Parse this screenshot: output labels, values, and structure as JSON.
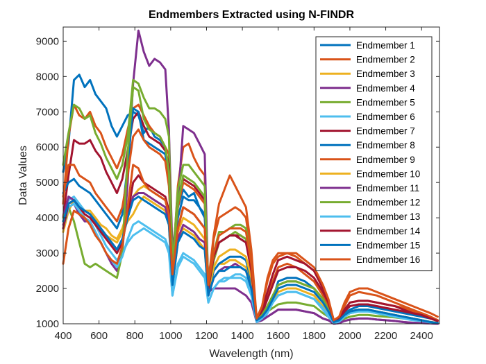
{
  "chart_data": {
    "type": "line",
    "title": "Endmembers Extracted using N-FINDR",
    "xlabel": "Wavelength (nm)",
    "ylabel": "Data Values",
    "xlim": [
      400,
      2500
    ],
    "ylim": [
      1000,
      9400
    ],
    "xticks": [
      400,
      600,
      800,
      1000,
      1200,
      1400,
      1600,
      1800,
      2000,
      2200,
      2400
    ],
    "yticks": [
      1000,
      2000,
      3000,
      4000,
      5000,
      6000,
      7000,
      8000,
      9000
    ],
    "grid": false,
    "legend_position": "top-right",
    "x": [
      400,
      430,
      460,
      490,
      520,
      550,
      580,
      610,
      640,
      670,
      700,
      730,
      760,
      790,
      820,
      850,
      880,
      910,
      940,
      970,
      990,
      1010,
      1040,
      1070,
      1100,
      1130,
      1160,
      1190,
      1210,
      1240,
      1270,
      1300,
      1330,
      1360,
      1390,
      1420,
      1450,
      1480,
      1510,
      1540,
      1570,
      1600,
      1650,
      1700,
      1750,
      1800,
      1850,
      1880,
      1910,
      1940,
      1970,
      2000,
      2050,
      2100,
      2150,
      2200,
      2250,
      2300,
      2350,
      2400,
      2450,
      2490
    ],
    "series": [
      {
        "name": "Endmember  1",
        "color": "#0072BD",
        "values": [
          5300,
          6100,
          7900,
          8050,
          7700,
          7900,
          7500,
          7300,
          7100,
          6600,
          6300,
          6600,
          6900,
          7000,
          6900,
          6400,
          6600,
          6300,
          6200,
          6000,
          5200,
          2800,
          4300,
          4800,
          4600,
          4700,
          4300,
          4000,
          2300,
          3100,
          3300,
          3400,
          3500,
          3500,
          3400,
          3300,
          2600,
          1200,
          1300,
          1500,
          1700,
          2200,
          2300,
          2300,
          2200,
          2000,
          1700,
          1500,
          1100,
          1150,
          1300,
          1400,
          1500,
          1500,
          1450,
          1400,
          1350,
          1300,
          1250,
          1200,
          1150,
          1100
        ]
      },
      {
        "name": "Endmember  2",
        "color": "#D95319",
        "values": [
          4400,
          6300,
          7200,
          6900,
          6800,
          7000,
          6600,
          6400,
          6000,
          5700,
          5400,
          5800,
          6500,
          7100,
          7200,
          6900,
          6600,
          6400,
          6300,
          6000,
          5800,
          2500,
          4900,
          6000,
          6100,
          5700,
          5400,
          5200,
          2000,
          3400,
          4000,
          4100,
          4200,
          4300,
          4200,
          4000,
          2900,
          1100,
          1300,
          1800,
          2200,
          2600,
          2700,
          2600,
          2400,
          2200,
          1800,
          1500,
          1100,
          1150,
          1400,
          1600,
          1650,
          1650,
          1600,
          1550,
          1500,
          1450,
          1350,
          1300,
          1200,
          1100
        ]
      },
      {
        "name": "Endmember  3",
        "color": "#EDB120",
        "values": [
          3600,
          4200,
          4500,
          4300,
          4200,
          4100,
          3900,
          3600,
          3500,
          3400,
          3300,
          3600,
          3900,
          4100,
          4400,
          4600,
          4500,
          4400,
          4300,
          4200,
          3800,
          2100,
          3300,
          3700,
          3600,
          3500,
          3300,
          3100,
          1800,
          2500,
          2700,
          2700,
          2800,
          2800,
          2700,
          2600,
          2100,
          1100,
          1200,
          1400,
          1600,
          1900,
          2000,
          2000,
          1900,
          1800,
          1500,
          1300,
          1050,
          1100,
          1250,
          1350,
          1400,
          1400,
          1350,
          1300,
          1250,
          1200,
          1150,
          1100,
          1050,
          1020
        ]
      },
      {
        "name": "Endmember  4",
        "color": "#7E2F8E",
        "values": [
          3800,
          4300,
          4400,
          4100,
          3900,
          3900,
          3600,
          3300,
          3000,
          2700,
          2500,
          3000,
          5000,
          7800,
          9300,
          8700,
          8300,
          8500,
          8400,
          8200,
          6500,
          3000,
          4400,
          6600,
          6500,
          6400,
          6100,
          5800,
          1900,
          2000,
          2000,
          2000,
          2000,
          2000,
          1900,
          1800,
          1600,
          1050,
          1100,
          1200,
          1300,
          1400,
          1400,
          1400,
          1350,
          1300,
          1150,
          1100,
          1000,
          1020,
          1080,
          1120,
          1150,
          1150,
          1120,
          1100,
          1080,
          1050,
          1030,
          1020,
          1010,
          1000
        ]
      },
      {
        "name": "Endmember  5",
        "color": "#77AC30",
        "values": [
          5500,
          6400,
          7200,
          7100,
          6800,
          6900,
          6400,
          6100,
          5700,
          5400,
          5100,
          5500,
          6300,
          7900,
          7800,
          7400,
          7100,
          7100,
          7000,
          6800,
          6300,
          2600,
          4800,
          5500,
          5500,
          5300,
          5100,
          4900,
          2000,
          3000,
          3600,
          3600,
          3700,
          3800,
          3800,
          3700,
          2700,
          1100,
          1200,
          1350,
          1450,
          1550,
          1600,
          1600,
          1550,
          1500,
          1300,
          1200,
          1000,
          1050,
          1150,
          1200,
          1250,
          1250,
          1220,
          1200,
          1180,
          1150,
          1120,
          1100,
          1050,
          1030
        ]
      },
      {
        "name": "Endmember  6",
        "color": "#4DBEEE",
        "values": [
          3900,
          4500,
          4600,
          4400,
          4200,
          4100,
          3800,
          3500,
          3200,
          3000,
          2800,
          3000,
          3300,
          3500,
          3600,
          3700,
          3600,
          3500,
          3400,
          3300,
          3000,
          1800,
          2600,
          2900,
          2800,
          2700,
          2500,
          2300,
          1600,
          2000,
          2200,
          2300,
          2300,
          2400,
          2400,
          2300,
          1900,
          1050,
          1100,
          1300,
          1600,
          1800,
          1900,
          1900,
          1800,
          1700,
          1400,
          1200,
          1020,
          1050,
          1200,
          1300,
          1350,
          1350,
          1300,
          1250,
          1220,
          1180,
          1130,
          1080,
          1050,
          1020
        ]
      },
      {
        "name": "Endmember  7",
        "color": "#A2142F",
        "values": [
          4000,
          5200,
          6200,
          6100,
          6100,
          6200,
          5900,
          5700,
          5300,
          5000,
          4700,
          5100,
          5900,
          6800,
          7000,
          6600,
          6300,
          6200,
          6100,
          5900,
          5500,
          2500,
          4400,
          5100,
          5000,
          4900,
          4700,
          4500,
          2000,
          2800,
          3300,
          3400,
          3500,
          3500,
          3500,
          3400,
          2600,
          1100,
          1300,
          1700,
          2100,
          2500,
          2600,
          2600,
          2500,
          2300,
          1900,
          1600,
          1100,
          1150,
          1350,
          1500,
          1550,
          1550,
          1500,
          1450,
          1400,
          1350,
          1300,
          1250,
          1150,
          1080
        ]
      },
      {
        "name": "Endmember  8",
        "color": "#0072BD",
        "values": [
          4700,
          5000,
          5100,
          4900,
          4800,
          4700,
          4500,
          4300,
          4100,
          3900,
          3700,
          4100,
          5500,
          7100,
          7000,
          6200,
          6100,
          6000,
          5900,
          5800,
          5000,
          2600,
          4000,
          4600,
          4500,
          4500,
          4300,
          4100,
          1900,
          2500,
          2700,
          2800,
          2900,
          2900,
          2900,
          2800,
          2200,
          1100,
          1200,
          1500,
          1800,
          2100,
          2200,
          2200,
          2100,
          2000,
          1700,
          1400,
          1050,
          1100,
          1250,
          1350,
          1400,
          1400,
          1350,
          1300,
          1250,
          1200,
          1150,
          1100,
          1050,
          1020
        ]
      },
      {
        "name": "Endmember  9",
        "color": "#D95319",
        "values": [
          4600,
          5500,
          5500,
          5200,
          5100,
          5000,
          4700,
          4500,
          4300,
          4100,
          3900,
          4300,
          5200,
          6300,
          6500,
          6200,
          6000,
          5900,
          5800,
          5600,
          4900,
          2700,
          4300,
          5000,
          4900,
          4800,
          4600,
          4400,
          2200,
          3500,
          4400,
          4800,
          5200,
          4900,
          4600,
          4300,
          3100,
          1150,
          1500,
          2200,
          2700,
          2900,
          3000,
          2900,
          2700,
          2500,
          2000,
          1600,
          1100,
          1200,
          1500,
          1800,
          1900,
          1850,
          1800,
          1700,
          1600,
          1500,
          1400,
          1300,
          1200,
          1100
        ]
      },
      {
        "name": "Endmember 10",
        "color": "#EDB120",
        "values": [
          3900,
          4400,
          4500,
          4300,
          4200,
          4200,
          4000,
          3800,
          3700,
          3500,
          3400,
          3700,
          4200,
          4600,
          4800,
          4900,
          4800,
          4700,
          4600,
          4500,
          4100,
          2200,
          3600,
          4000,
          3900,
          3800,
          3600,
          3400,
          1900,
          2600,
          2900,
          3000,
          3100,
          3100,
          3000,
          2900,
          2300,
          1100,
          1250,
          1500,
          1800,
          2100,
          2200,
          2200,
          2100,
          2000,
          1700,
          1400,
          1050,
          1100,
          1250,
          1350,
          1400,
          1400,
          1350,
          1300,
          1250,
          1200,
          1150,
          1100,
          1050,
          1020
        ]
      },
      {
        "name": "Endmember 11",
        "color": "#7E2F8E",
        "values": [
          4000,
          4600,
          4500,
          4300,
          4200,
          4100,
          3900,
          3700,
          3500,
          3300,
          3100,
          3400,
          4000,
          4600,
          4700,
          4700,
          4600,
          4500,
          4400,
          4300,
          3900,
          2100,
          3400,
          3800,
          3700,
          3600,
          3400,
          3300,
          1800,
          2300,
          2500,
          2600,
          2600,
          2700,
          2600,
          2500,
          2000,
          1050,
          1100,
          1200,
          1300,
          1400,
          1400,
          1400,
          1350,
          1300,
          1150,
          1100,
          1000,
          1020,
          1080,
          1120,
          1150,
          1150,
          1120,
          1100,
          1080,
          1050,
          1030,
          1020,
          1010,
          1000
        ]
      },
      {
        "name": "Endmember 12",
        "color": "#77AC30",
        "values": [
          4000,
          4300,
          3900,
          3300,
          2700,
          2600,
          2700,
          2600,
          2500,
          2400,
          2300,
          3000,
          5800,
          7700,
          7600,
          6800,
          6500,
          6400,
          6300,
          6000,
          5300,
          2700,
          4400,
          5200,
          5100,
          5000,
          4800,
          4600,
          2000,
          2800,
          3300,
          3400,
          3500,
          3600,
          3500,
          3400,
          2600,
          1100,
          1250,
          1500,
          1800,
          2100,
          2200,
          2200,
          2100,
          2000,
          1700,
          1400,
          1050,
          1100,
          1250,
          1350,
          1400,
          1400,
          1350,
          1300,
          1250,
          1200,
          1150,
          1100,
          1050,
          1020
        ]
      },
      {
        "name": "Endmember 13",
        "color": "#4DBEEE",
        "values": [
          3700,
          4300,
          4400,
          4200,
          4000,
          3900,
          3600,
          3300,
          3000,
          2800,
          2600,
          2900,
          3400,
          3800,
          3900,
          3800,
          3700,
          3600,
          3500,
          3400,
          3100,
          1800,
          2700,
          3000,
          2900,
          2800,
          2600,
          2400,
          1600,
          2000,
          2200,
          2200,
          2300,
          2300,
          2300,
          2200,
          1800,
          1050,
          1150,
          1350,
          1600,
          1800,
          1900,
          1900,
          1800,
          1700,
          1450,
          1250,
          1020,
          1060,
          1200,
          1300,
          1350,
          1350,
          1300,
          1250,
          1200,
          1150,
          1100,
          1080,
          1040,
          1020
        ]
      },
      {
        "name": "Endmember 14",
        "color": "#A2142F",
        "values": [
          3700,
          4400,
          4500,
          4300,
          4100,
          4000,
          3800,
          3600,
          3400,
          3200,
          3000,
          3300,
          4100,
          5000,
          5200,
          5000,
          4900,
          4800,
          4700,
          4600,
          4200,
          2300,
          3700,
          4300,
          4200,
          4100,
          3900,
          3700,
          2000,
          2900,
          3300,
          3400,
          3500,
          3500,
          3400,
          3300,
          2500,
          1150,
          1400,
          1900,
          2400,
          2800,
          2900,
          2800,
          2700,
          2500,
          2000,
          1600,
          1100,
          1150,
          1400,
          1600,
          1650,
          1650,
          1600,
          1550,
          1500,
          1400,
          1300,
          1250,
          1150,
          1080
        ]
      },
      {
        "name": "Endmember 15",
        "color": "#0072BD",
        "values": [
          3900,
          4400,
          4500,
          4300,
          4200,
          4100,
          3900,
          3700,
          3500,
          3300,
          3100,
          3400,
          4000,
          4500,
          4600,
          4500,
          4400,
          4300,
          4200,
          4100,
          3800,
          2100,
          3300,
          3600,
          3500,
          3400,
          3200,
          3100,
          1800,
          2300,
          2500,
          2500,
          2600,
          2600,
          2600,
          2500,
          2000,
          1100,
          1200,
          1400,
          1700,
          2000,
          2100,
          2100,
          2000,
          1900,
          1600,
          1350,
          1050,
          1100,
          1250,
          1350,
          1400,
          1400,
          1350,
          1300,
          1250,
          1200,
          1150,
          1100,
          1050,
          1020
        ]
      },
      {
        "name": "Endmember 16",
        "color": "#D95319",
        "values": [
          2700,
          3700,
          4200,
          4100,
          4000,
          3800,
          3500,
          3300,
          3000,
          2800,
          2700,
          3200,
          4300,
          5500,
          5400,
          5000,
          4800,
          4700,
          4600,
          4500,
          4100,
          2400,
          3700,
          4300,
          4200,
          4100,
          3900,
          3700,
          2100,
          3000,
          3500,
          3600,
          3700,
          3700,
          3700,
          3600,
          2700,
          1150,
          1500,
          2300,
          2800,
          3000,
          3000,
          3000,
          2800,
          2600,
          2100,
          1700,
          1100,
          1200,
          1600,
          1900,
          2000,
          2000,
          1900,
          1800,
          1700,
          1600,
          1500,
          1400,
          1300,
          1200
        ]
      }
    ]
  }
}
